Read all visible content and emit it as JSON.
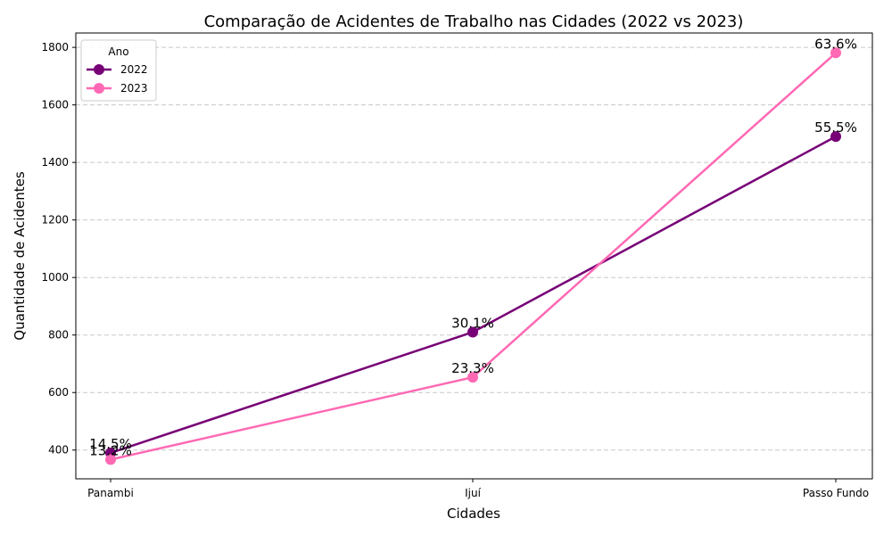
{
  "chart_data": {
    "type": "line",
    "title": "Comparação de Acidentes de Trabalho nas Cidades (2022 vs 2023)",
    "xlabel": "Cidades",
    "ylabel": "Quantidade de Acidentes",
    "categories": [
      "Panambi",
      "Ijuí",
      "Passo Fundo"
    ],
    "series": [
      {
        "name": "2022",
        "color": "#770077",
        "values": [
          390,
          810,
          1490
        ],
        "labels": [
          "14.5%",
          "30.1%",
          "55.5%"
        ]
      },
      {
        "name": "2023",
        "color": "#ff69b4",
        "values": [
          367,
          653,
          1781
        ],
        "labels": [
          "13.2%",
          "23.3%",
          "63.6%"
        ]
      }
    ],
    "ylim": [
      300,
      1850
    ],
    "yticks": [
      400,
      600,
      800,
      1000,
      1200,
      1400,
      1600,
      1800
    ],
    "grid": "y-dashed",
    "legend": {
      "title": "Ano",
      "placement": "top-left"
    }
  }
}
